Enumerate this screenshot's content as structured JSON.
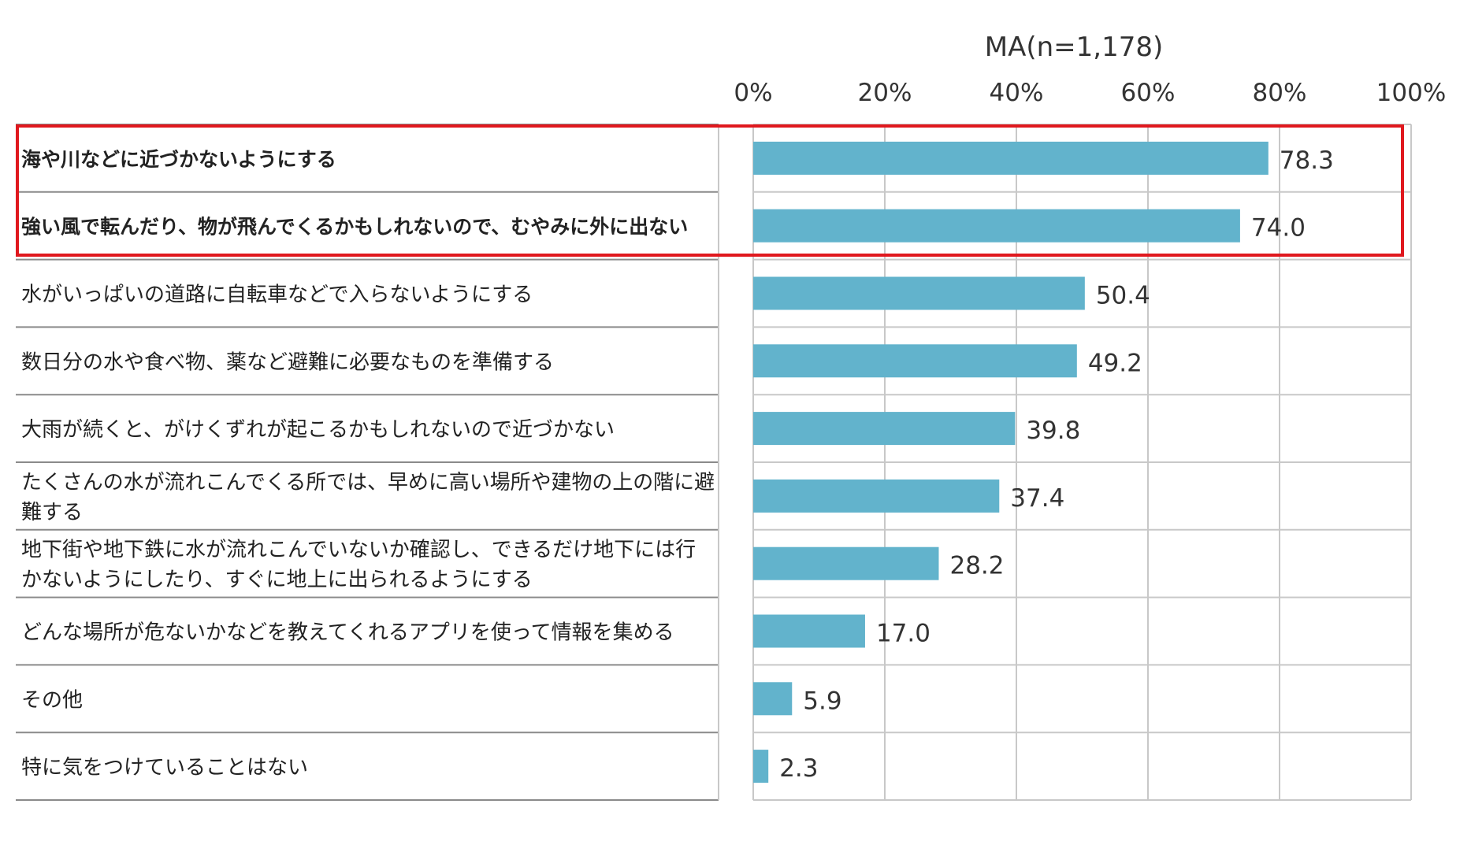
{
  "chart_data": {
    "type": "bar",
    "orientation": "horizontal",
    "subtitle": "MA(n=1,178)",
    "xlim": [
      0,
      100
    ],
    "ticks": [
      0,
      20,
      40,
      60,
      80,
      100
    ],
    "tick_labels": [
      "0%",
      "20%",
      "40%",
      "60%",
      "80%",
      "100%"
    ],
    "grid": true,
    "bar_color": "#62b3cc",
    "highlight_color": "#e0181e",
    "categories": [
      "海や川などに近づかないようにする",
      "強い風で転んだり、物が飛んでくるかもしれないので、むやみに外に出ない",
      "水がいっぱいの道路に自転車などで入らないようにする",
      "数日分の水や食べ物、薬など避難に必要なものを準備する",
      "大雨が続くと、がけくずれが起こるかもしれないので近づかない",
      "たくさんの水が流れこんでくる所では、早めに高い場所や建物の上の階に避難する",
      "地下街や地下鉄に水が流れこんでいないか確認し、できるだけ地下には行かないようにしたり、すぐに地上に出られるようにする",
      "どんな場所が危ないかなどを教えてくれるアプリを使って情報を集める",
      "その他",
      "特に気をつけていることはない"
    ],
    "label_lines": [
      [
        "海や川などに近づかないようにする"
      ],
      [
        "強い風で転んだり、物が飛んでくるかもしれないので、むやみに外に出ない"
      ],
      [
        "水がいっぱいの道路に自転車などで入らないようにする"
      ],
      [
        "数日分の水や食べ物、薬など避難に必要なものを準備する"
      ],
      [
        "大雨が続くと、がけくずれが起こるかもしれないので近づかない"
      ],
      [
        "たくさんの水が流れこんでくる所では、早めに高い場所や建物の上の階に避",
        "難する"
      ],
      [
        "地下街や地下鉄に水が流れこんでいないか確認し、できるだけ地下には行",
        "かないようにしたり、すぐに地上に出られるようにする"
      ],
      [
        "どんな場所が危ないかなどを教えてくれるアプリを使って情報を集める"
      ],
      [
        "その他"
      ],
      [
        "特に気をつけていることはない"
      ]
    ],
    "values": [
      78.3,
      74.0,
      50.4,
      49.2,
      39.8,
      37.4,
      28.2,
      17.0,
      5.9,
      2.3
    ],
    "value_labels": [
      "78.3",
      "74.0",
      "50.4",
      "49.2",
      "39.8",
      "37.4",
      "28.2",
      "17.0",
      "5.9",
      "2.3"
    ],
    "highlighted": [
      0,
      1
    ]
  }
}
